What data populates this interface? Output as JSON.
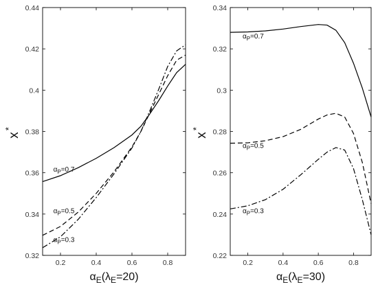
{
  "chart_data": [
    {
      "type": "line",
      "panel": "left",
      "xlabel": {
        "base": "α",
        "sub": "E",
        "paren_open": "(",
        "lambda": "λ",
        "lambda_sub": "E",
        "rest": "=20)"
      },
      "ylabel": {
        "base": "x",
        "sup": "*"
      },
      "xlim": [
        0.1,
        0.9
      ],
      "ylim": [
        0.32,
        0.44
      ],
      "xticks": [
        0.2,
        0.4,
        0.6,
        0.8
      ],
      "xtick_labels": [
        "0.2",
        "0.4",
        "0.6",
        "0.8"
      ],
      "yticks": [
        0.32,
        0.34,
        0.36,
        0.38,
        0.4,
        0.42,
        0.44
      ],
      "ytick_labels": [
        "0.32",
        "0.34",
        "0.36",
        "0.38",
        "0.4",
        "0.42",
        "0.44"
      ],
      "grid": false,
      "series": [
        {
          "label_base": "α",
          "label_sub": "P",
          "label_rest": "=0.7",
          "dash": "solid",
          "label_at": [
            0.16,
            0.3605
          ],
          "x": [
            0.1,
            0.2,
            0.3,
            0.4,
            0.5,
            0.6,
            0.65,
            0.7,
            0.75,
            0.8,
            0.85,
            0.9
          ],
          "y": [
            0.3557,
            0.3586,
            0.3625,
            0.367,
            0.3722,
            0.3783,
            0.3825,
            0.3885,
            0.395,
            0.402,
            0.4085,
            0.4125
          ]
        },
        {
          "label_base": "α",
          "label_sub": "P",
          "label_rest": "=0.5",
          "dash": "dashed",
          "label_at": [
            0.16,
            0.3405
          ],
          "x": [
            0.1,
            0.2,
            0.3,
            0.4,
            0.5,
            0.6,
            0.65,
            0.7,
            0.75,
            0.8,
            0.85,
            0.9
          ],
          "y": [
            0.3297,
            0.334,
            0.341,
            0.35,
            0.3605,
            0.3725,
            0.38,
            0.389,
            0.398,
            0.407,
            0.4145,
            0.417
          ]
        },
        {
          "label_base": "α",
          "label_sub": "P",
          "label_rest": "=0.3",
          "dash": "dashdot",
          "label_at": [
            0.16,
            0.3265
          ],
          "x": [
            0.1,
            0.2,
            0.3,
            0.4,
            0.5,
            0.6,
            0.65,
            0.7,
            0.75,
            0.8,
            0.85,
            0.9
          ],
          "y": [
            0.3237,
            0.329,
            0.3375,
            0.348,
            0.3595,
            0.372,
            0.38,
            0.39,
            0.4005,
            0.4115,
            0.419,
            0.422
          ]
        }
      ]
    },
    {
      "type": "line",
      "panel": "right",
      "xlabel": {
        "base": "α",
        "sub": "E",
        "paren_open": "(",
        "lambda": "λ",
        "lambda_sub": "E",
        "rest": "=30)"
      },
      "ylabel": {
        "base": "x",
        "sup": "*"
      },
      "xlim": [
        0.1,
        0.9
      ],
      "ylim": [
        0.22,
        0.34
      ],
      "xticks": [
        0.2,
        0.4,
        0.6,
        0.8
      ],
      "xtick_labels": [
        "0.2",
        "0.4",
        "0.6",
        "0.8"
      ],
      "yticks": [
        0.22,
        0.24,
        0.26,
        0.28,
        0.3,
        0.32,
        0.34
      ],
      "ytick_labels": [
        "0.22",
        "0.24",
        "0.26",
        "0.28",
        "0.3",
        "0.32",
        "0.34"
      ],
      "grid": false,
      "series": [
        {
          "label_base": "α",
          "label_sub": "P",
          "label_rest": "=0.7",
          "dash": "solid",
          "label_at": [
            0.17,
            0.325
          ],
          "x": [
            0.1,
            0.2,
            0.3,
            0.4,
            0.5,
            0.6,
            0.65,
            0.7,
            0.75,
            0.8,
            0.85,
            0.9
          ],
          "y": [
            0.328,
            0.3282,
            0.3287,
            0.3296,
            0.3308,
            0.3318,
            0.3315,
            0.329,
            0.323,
            0.313,
            0.301,
            0.287
          ]
        },
        {
          "label_base": "α",
          "label_sub": "P",
          "label_rest": "=0.5",
          "dash": "dashed",
          "label_at": [
            0.17,
            0.272
          ],
          "x": [
            0.1,
            0.2,
            0.3,
            0.4,
            0.5,
            0.6,
            0.65,
            0.7,
            0.75,
            0.8,
            0.85,
            0.9
          ],
          "y": [
            0.2743,
            0.2745,
            0.2755,
            0.2775,
            0.281,
            0.286,
            0.288,
            0.2888,
            0.287,
            0.279,
            0.265,
            0.245
          ]
        },
        {
          "label_base": "α",
          "label_sub": "P",
          "label_rest": "=0.3",
          "dash": "dashdot",
          "label_at": [
            0.17,
            0.2405
          ],
          "x": [
            0.1,
            0.2,
            0.3,
            0.4,
            0.5,
            0.6,
            0.65,
            0.7,
            0.75,
            0.8,
            0.85,
            0.9
          ],
          "y": [
            0.2425,
            0.244,
            0.247,
            0.252,
            0.259,
            0.2665,
            0.27,
            0.2722,
            0.271,
            0.262,
            0.247,
            0.23
          ]
        }
      ]
    }
  ]
}
